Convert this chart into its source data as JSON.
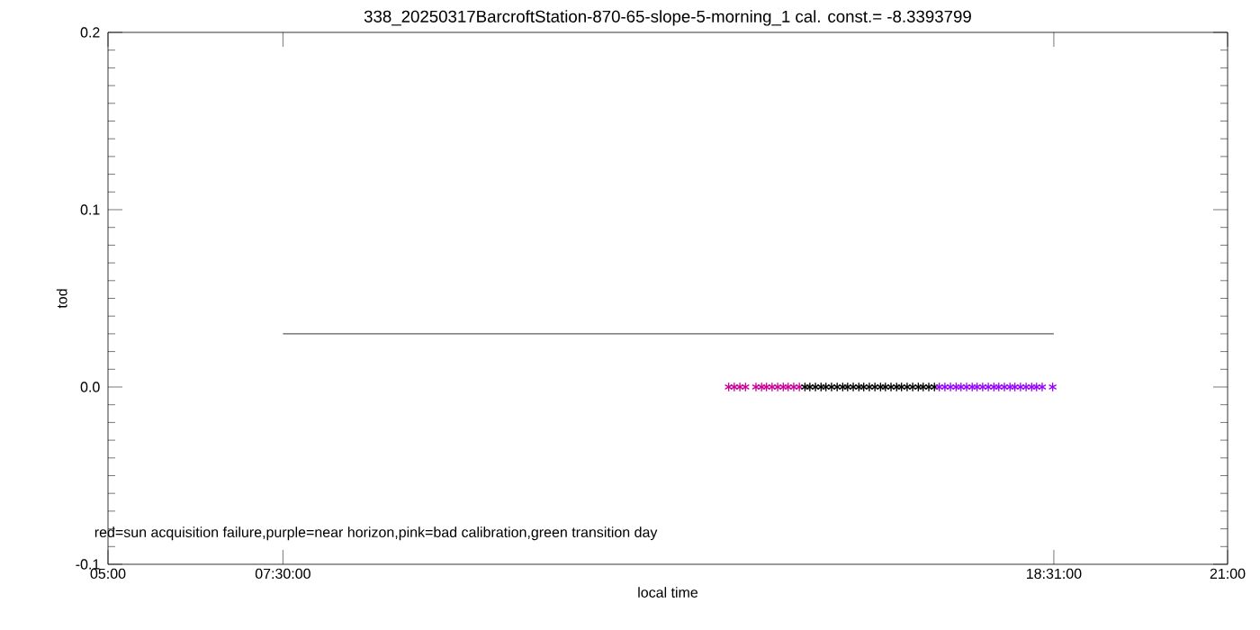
{
  "chart_data": {
    "type": "scatter",
    "title": "338_20250317BarcroftStation-870-65-slope-5-morning_1 cal. const.= -8.3393799",
    "xlabel": "local time",
    "ylabel": "tod",
    "xlim": [
      5,
      21
    ],
    "ylim": [
      -0.1,
      0.2
    ],
    "xticks": [
      {
        "value": 5,
        "label": "05:00"
      },
      {
        "value": 7.5,
        "label": "07:30:00"
      },
      {
        "value": 18.5167,
        "label": "18:31:00"
      },
      {
        "value": 21,
        "label": "21:00"
      }
    ],
    "yticks": [
      -0.1,
      {
        "value": 0,
        "label": "0.0"
      },
      0.1,
      0.2
    ],
    "grid": false,
    "marker": "cross",
    "annotations": [
      "red=sun acquisition failure,purple=near horizon,pink=bad calibration,green transition day"
    ],
    "series": [
      {
        "type": "line",
        "color": "#000000",
        "marker": "none",
        "x": [
          7.5,
          18.5167
        ],
        "values": [
          0.03,
          0.03
        ]
      },
      {
        "color": "#cc0099",
        "x": [
          13.87,
          13.95,
          14.03,
          14.11,
          14.26,
          14.34,
          14.41,
          14.49,
          14.57,
          14.65,
          14.72,
          14.8,
          14.88
        ],
        "values": [
          0,
          0,
          0,
          0,
          0,
          0,
          0,
          0,
          0,
          0,
          0,
          0,
          0
        ]
      },
      {
        "color": "#000000",
        "x": [
          14.96,
          15.03,
          15.11,
          15.19,
          15.26,
          15.34,
          15.42,
          15.5,
          15.57,
          15.65,
          15.73,
          15.8,
          15.88,
          15.96,
          16.04,
          16.11,
          16.19,
          16.27,
          16.34,
          16.42,
          16.5,
          16.58,
          16.65,
          16.73,
          16.81
        ],
        "values": [
          0,
          0,
          0,
          0,
          0,
          0,
          0,
          0,
          0,
          0,
          0,
          0,
          0,
          0,
          0,
          0,
          0,
          0,
          0,
          0,
          0,
          0,
          0,
          0,
          0
        ]
      },
      {
        "color": "#9900ff",
        "x": [
          16.88,
          16.96,
          17.04,
          17.12,
          17.19,
          17.27,
          17.35,
          17.42,
          17.5,
          17.58,
          17.66,
          17.73,
          17.81,
          17.89,
          17.96,
          18.04,
          18.12,
          18.2,
          18.27,
          18.35,
          18.5
        ],
        "values": [
          0,
          0,
          0,
          0,
          0,
          0,
          0,
          0,
          0,
          0,
          0,
          0,
          0,
          0,
          0,
          0,
          0,
          0,
          0,
          0,
          0
        ]
      }
    ]
  }
}
